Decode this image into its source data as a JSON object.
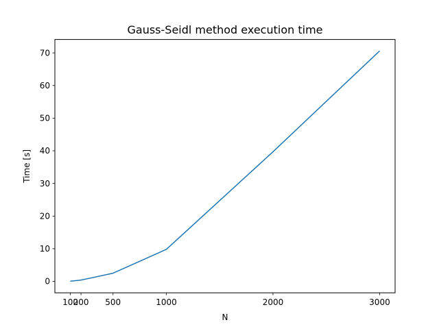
{
  "chart_data": {
    "type": "line",
    "title": "Gauss-Seidl method execution time",
    "xlabel": "N",
    "ylabel": "Time [s]",
    "x": [
      100,
      200,
      500,
      1000,
      2000,
      3000
    ],
    "series": [
      {
        "values": [
          0.05,
          0.4,
          2.5,
          9.8,
          39.7,
          70.6
        ]
      }
    ],
    "xticks": [
      100,
      200,
      500,
      1000,
      2000,
      3000
    ],
    "yticks": [
      0,
      10,
      20,
      30,
      40,
      50,
      60,
      70
    ],
    "xlim": [
      -45,
      3145
    ],
    "ylim": [
      -3.5,
      74.1
    ],
    "grid": false,
    "line_color": "#1f77b4"
  }
}
